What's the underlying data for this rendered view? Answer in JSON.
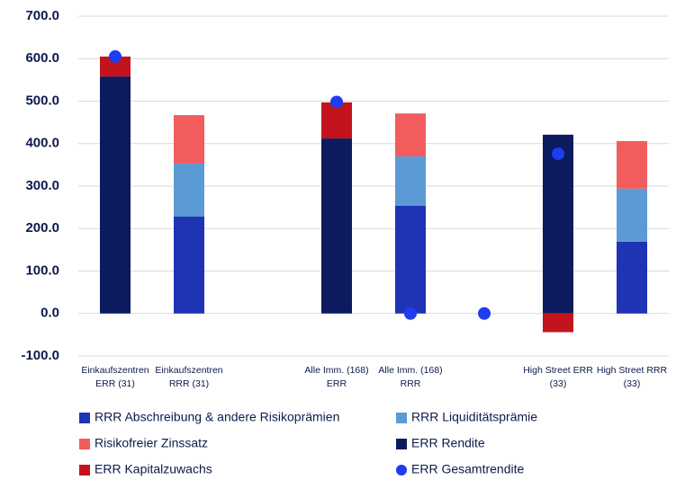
{
  "chart_data": {
    "type": "bar",
    "stacked": true,
    "categories": [
      "Einkaufszentren ERR (31)",
      "Einkaufszentren RRR (31)",
      null,
      "Alle Imm. (168) ERR",
      "Alle Imm. (168) RRR",
      null,
      "High Street ERR (33)",
      "High Street RRR (33)"
    ],
    "series": [
      {
        "name": "RRR Abschreibung & andere Risikoprämien",
        "color": "#1f33b5",
        "values": [
          null,
          228,
          null,
          null,
          254,
          null,
          null,
          169
        ]
      },
      {
        "name": "RRR Liquiditätsprämie",
        "color": "#5b9bd5",
        "values": [
          null,
          125,
          null,
          null,
          116,
          null,
          null,
          125
        ]
      },
      {
        "name": "Risikofreier Zinssatz",
        "color": "#f25c5c",
        "values": [
          null,
          114,
          null,
          null,
          101,
          null,
          null,
          112
        ]
      },
      {
        "name": "ERR Rendite",
        "color": "#0c1a60",
        "values": [
          558,
          null,
          null,
          412,
          null,
          null,
          421,
          null
        ]
      },
      {
        "name": "ERR Kapitalzuwachs",
        "color": "#c3141d",
        "values": [
          47,
          null,
          null,
          85,
          null,
          null,
          -44,
          null
        ]
      },
      {
        "name": "ERR Gesamtrendite",
        "color": "#1e3cf0",
        "type": "scatter",
        "values": [
          605,
          null,
          null,
          498,
          0,
          0,
          376,
          null
        ]
      }
    ],
    "ylim": [
      -100,
      700
    ],
    "yticks": [
      {
        "value": -100,
        "label": "-100.0"
      },
      {
        "value": 0,
        "label": "0.0"
      },
      {
        "value": 100,
        "label": "100.0"
      },
      {
        "value": 200,
        "label": "200.0"
      },
      {
        "value": 300,
        "label": "300.0"
      },
      {
        "value": 400,
        "label": "400.0"
      },
      {
        "value": 500,
        "label": "500.0"
      },
      {
        "value": 600,
        "label": "600.0"
      },
      {
        "value": 700,
        "label": "700.0"
      }
    ],
    "grid": true
  }
}
